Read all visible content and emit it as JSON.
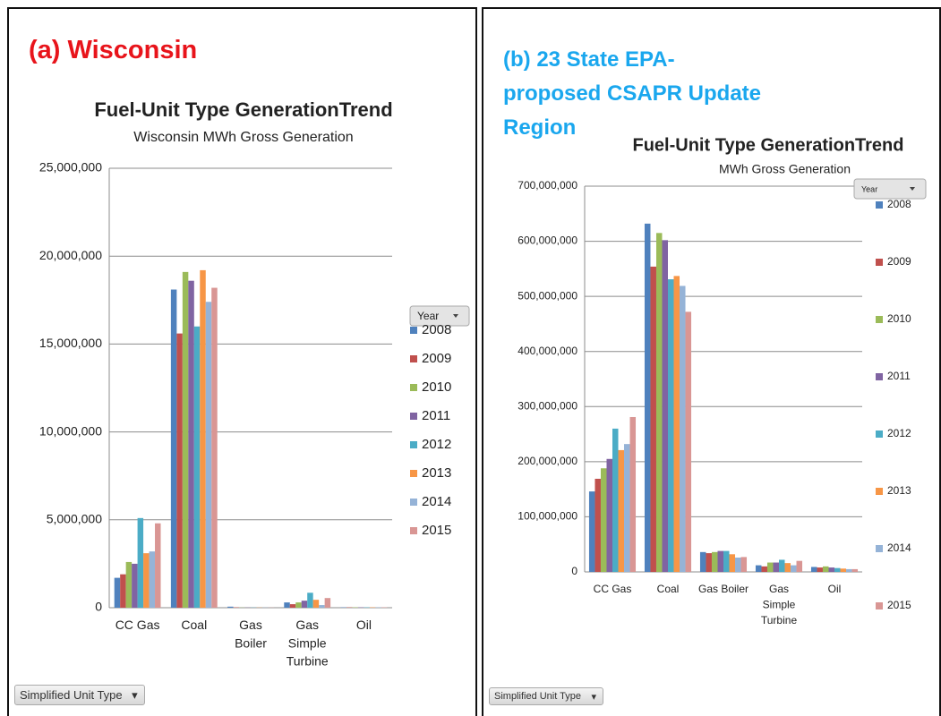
{
  "chart_data": [
    {
      "type": "bar",
      "panel_label": "(a) Wisconsin",
      "title": "Fuel-Unit Type GenerationTrend",
      "subtitle": "Wisconsin MWh Gross Generation",
      "legend_title": "Year",
      "axis_field": "Simplified Unit Type",
      "categories": [
        "CC Gas",
        "Coal",
        "Gas Boiler",
        "Gas Simple Turbine",
        "Oil"
      ],
      "ylim": [
        0,
        25000000
      ],
      "yticks": [
        0,
        {
          "value": 5000000,
          "label": "5,000,000"
        },
        {
          "value": 10000000,
          "label": "10,000,000"
        },
        {
          "value": 15000000,
          "label": "15,000,000"
        },
        {
          "value": 20000000,
          "label": "20,000,000"
        },
        {
          "value": 25000000,
          "label": "25,000,000"
        }
      ],
      "grid": true,
      "legend": "right",
      "series": [
        {
          "name": "2008",
          "color": "#4f81bd",
          "values": [
            1700000,
            18100000,
            60000,
            300000,
            20000
          ]
        },
        {
          "name": "2009",
          "color": "#c0504d",
          "values": [
            1900000,
            15600000,
            20000,
            200000,
            20000
          ]
        },
        {
          "name": "2010",
          "color": "#9bbb59",
          "values": [
            2600000,
            19100000,
            10000,
            300000,
            20000
          ]
        },
        {
          "name": "2011",
          "color": "#8064a2",
          "values": [
            2500000,
            18600000,
            10000,
            400000,
            20000
          ]
        },
        {
          "name": "2012",
          "color": "#4bacc6",
          "values": [
            5100000,
            16000000,
            10000,
            850000,
            20000
          ]
        },
        {
          "name": "2013",
          "color": "#f79646",
          "values": [
            3100000,
            19200000,
            10000,
            450000,
            20000
          ]
        },
        {
          "name": "2014",
          "color": "#95b3d7",
          "values": [
            3200000,
            17400000,
            10000,
            150000,
            20000
          ]
        },
        {
          "name": "2015",
          "color": "#d99694",
          "values": [
            4800000,
            18200000,
            10000,
            550000,
            20000
          ]
        }
      ]
    },
    {
      "type": "bar",
      "panel_label": "(b) 23 State EPA-proposed CSAPR Update Region",
      "title": "Fuel-Unit Type GenerationTrend",
      "subtitle": "MWh Gross Generation",
      "legend_title": "Year",
      "axis_field": "Simplified Unit Type",
      "categories": [
        "CC Gas",
        "Coal",
        "Gas Boiler",
        "Gas Simple Turbine",
        "Oil"
      ],
      "ylim": [
        0,
        700000000
      ],
      "yticks": [
        0,
        {
          "value": 100000000,
          "label": "100,000,000"
        },
        {
          "value": 200000000,
          "label": "200,000,000"
        },
        {
          "value": 300000000,
          "label": "300,000,000"
        },
        {
          "value": 400000000,
          "label": "400,000,000"
        },
        {
          "value": 500000000,
          "label": "500,000,000"
        },
        {
          "value": 600000000,
          "label": "600,000,000"
        },
        {
          "value": 700000000,
          "label": "700,000,000"
        }
      ],
      "grid": true,
      "legend": "right",
      "series": [
        {
          "name": "2008",
          "color": "#4f81bd",
          "values": [
            146000000,
            632000000,
            36000000,
            12000000,
            9000000
          ]
        },
        {
          "name": "2009",
          "color": "#c0504d",
          "values": [
            169000000,
            554000000,
            34000000,
            10000000,
            8000000
          ]
        },
        {
          "name": "2010",
          "color": "#9bbb59",
          "values": [
            188000000,
            615000000,
            36000000,
            17000000,
            10000000
          ]
        },
        {
          "name": "2011",
          "color": "#8064a2",
          "values": [
            205000000,
            602000000,
            38000000,
            17000000,
            8000000
          ]
        },
        {
          "name": "2012",
          "color": "#4bacc6",
          "values": [
            260000000,
            531000000,
            38000000,
            22000000,
            7000000
          ]
        },
        {
          "name": "2013",
          "color": "#f79646",
          "values": [
            221000000,
            537000000,
            32000000,
            16000000,
            6000000
          ]
        },
        {
          "name": "2014",
          "color": "#95b3d7",
          "values": [
            232000000,
            519000000,
            26000000,
            12000000,
            5000000
          ]
        },
        {
          "name": "2015",
          "color": "#d99694",
          "values": [
            281000000,
            472000000,
            27000000,
            20000000,
            5000000
          ]
        }
      ]
    }
  ]
}
